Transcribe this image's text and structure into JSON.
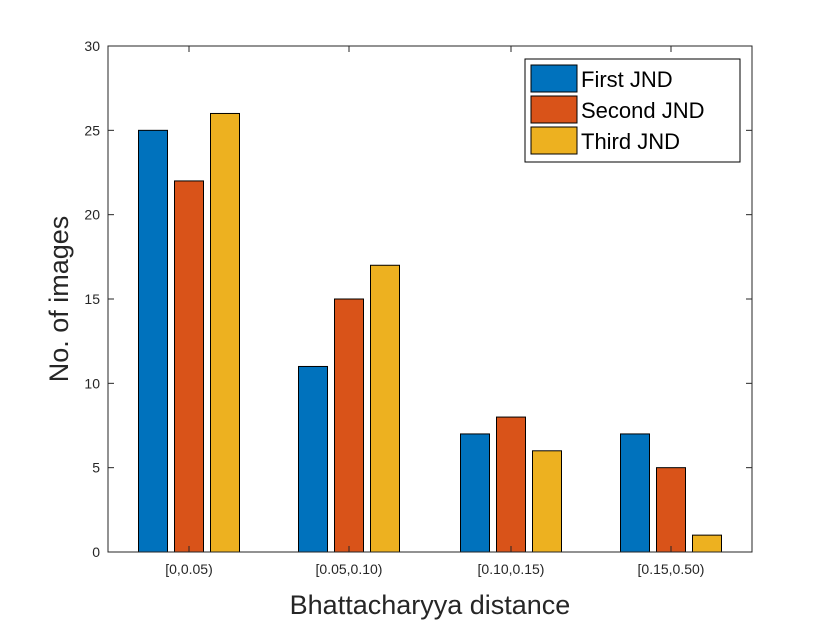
{
  "chart_data": {
    "type": "bar",
    "title": "",
    "xlabel": "Bhattacharyya distance",
    "ylabel": "No. of images",
    "categories": [
      "[0,0.05)",
      "[0.05,0.10)",
      "[0.10,0.15)",
      "[0.15,0.50)"
    ],
    "series": [
      {
        "name": "First JND",
        "color": "#0072BD",
        "values": [
          25,
          11,
          7,
          7
        ]
      },
      {
        "name": "Second JND",
        "color": "#D95319",
        "values": [
          22,
          15,
          8,
          5
        ]
      },
      {
        "name": "Third JND",
        "color": "#EDB120",
        "values": [
          26,
          17,
          6,
          1
        ]
      }
    ],
    "ylim": [
      0,
      30
    ],
    "yticks": [
      0,
      5,
      10,
      15,
      20,
      25,
      30
    ],
    "grid": false,
    "legend_position": "top-right"
  }
}
